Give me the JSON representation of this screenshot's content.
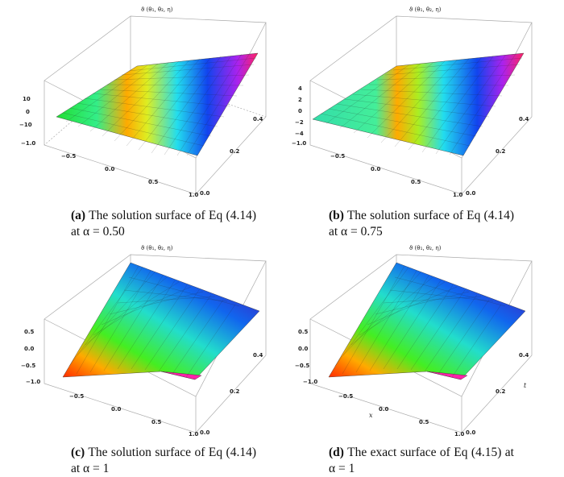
{
  "figure": {
    "panels": [
      {
        "id": "a",
        "plot_label": "ϑ (θ₁, θ₂, η)",
        "z_ticks": [
          "10",
          "0",
          "−10"
        ],
        "x_ticks": [
          "−1.0",
          "−0.5",
          "0.0",
          "0.5",
          "1.0"
        ],
        "y_ticks": [
          "0.0",
          "0.2",
          "0.4"
        ],
        "axis_x": "",
        "axis_t": "",
        "caption_tag": "(a)",
        "caption_text": "The solution surface of Eq (4.14) at α = 0.50"
      },
      {
        "id": "b",
        "plot_label": "ϑ (θ₁, θ₂, η)",
        "z_ticks": [
          "4",
          "2",
          "0",
          "−2",
          "−4"
        ],
        "x_ticks": [
          "−1.0",
          "−0.5",
          "0.0",
          "0.5",
          "1.0"
        ],
        "y_ticks": [
          "0.0",
          "0.2",
          "0.4"
        ],
        "axis_x": "",
        "axis_t": "",
        "caption_tag": "(b)",
        "caption_text": "The solution surface of Eq (4.14) at α = 0.75"
      },
      {
        "id": "c",
        "plot_label": "ϑ (θ₁, θ₂, η)",
        "z_ticks": [
          "0.5",
          "0.0",
          "−0.5"
        ],
        "x_ticks": [
          "−1.0",
          "−0.5",
          "0.0",
          "0.5",
          "1.0"
        ],
        "y_ticks": [
          "0.0",
          "0.2",
          "0.4"
        ],
        "axis_x": "",
        "axis_t": "",
        "caption_tag": "(c)",
        "caption_text": "The solution surface of Eq (4.14) at α = 1"
      },
      {
        "id": "d",
        "plot_label": "ϑ (θ₁, θ₂, η)",
        "z_ticks": [
          "0.5",
          "0.0",
          "−0.5"
        ],
        "x_ticks": [
          "−1.0",
          "−0.5",
          "0.0",
          "0.5",
          "1.0"
        ],
        "y_ticks": [
          "0.0",
          "0.2",
          "0.4"
        ],
        "axis_x": "x",
        "axis_t": "t",
        "caption_tag": "(d)",
        "caption_text": "The exact surface of Eq (4.15) at α = 1"
      }
    ]
  }
}
